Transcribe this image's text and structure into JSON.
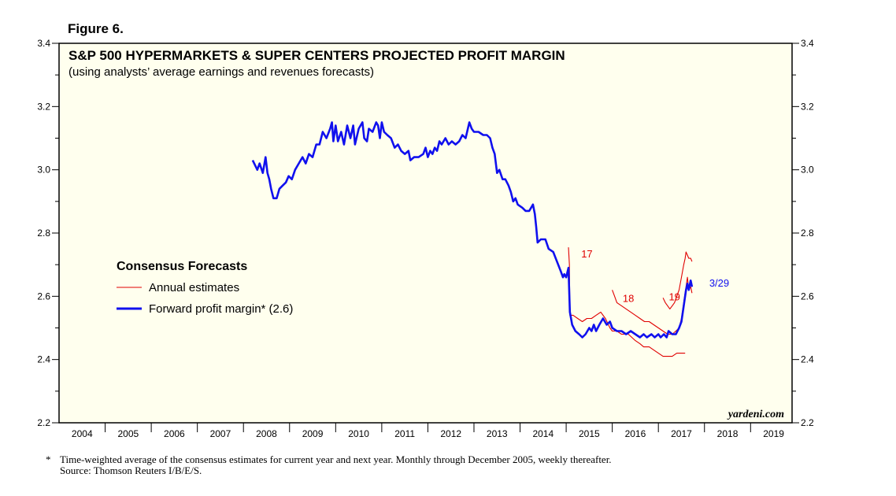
{
  "figure_label": "Figure 6.",
  "colors": {
    "background": "#ffffee",
    "forward": "#1010ee",
    "annual": "#e00000"
  },
  "footnote": {
    "marker": "*",
    "text": "Time-weighted average of the consensus estimates for current year and next year. Monthly through December 2005, weekly thereafter.",
    "source": "Source: Thomson Reuters I/B/E/S."
  },
  "chart_data": {
    "type": "line",
    "title": "S&P 500 HYPERMARKETS & SUPER CENTERS PROJECTED PROFIT MARGIN",
    "subtitle": "(using analysts’ average earnings and revenues forecasts)",
    "xlim": [
      2004.0,
      2019.9
    ],
    "ylim": [
      2.2,
      3.4
    ],
    "y_ticks": [
      "3.4",
      "3.2",
      "3.0",
      "2.8",
      "2.6",
      "2.4",
      "2.2"
    ],
    "x_labels": [
      "2004",
      "2005",
      "2006",
      "2007",
      "2008",
      "2009",
      "2010",
      "2011",
      "2012",
      "2013",
      "2014",
      "2015",
      "2016",
      "2017",
      "2018",
      "2019"
    ],
    "legend": {
      "heading": "Consensus Forecasts",
      "items": [
        "Annual estimates",
        "Forward profit margin* (2.6)"
      ]
    },
    "credit": "yardeni.com",
    "annotations": [
      {
        "text": "17",
        "x": 2015.45,
        "y": 2.735,
        "series": "annual"
      },
      {
        "text": "18",
        "x": 2016.35,
        "y": 2.595,
        "series": "annual"
      },
      {
        "text": "19",
        "x": 2017.35,
        "y": 2.6,
        "series": "annual"
      },
      {
        "text": "3/29",
        "x": 2018.32,
        "y": 2.643,
        "series": "forward"
      }
    ],
    "series": [
      {
        "name": "Forward profit margin* (2.6)",
        "color": "#1010ee",
        "points": [
          [
            2008.2,
            3.03
          ],
          [
            2008.3,
            3.0
          ],
          [
            2008.35,
            3.02
          ],
          [
            2008.42,
            2.99
          ],
          [
            2008.48,
            3.04
          ],
          [
            2008.52,
            2.99
          ],
          [
            2008.56,
            2.97
          ],
          [
            2008.6,
            2.94
          ],
          [
            2008.65,
            2.91
          ],
          [
            2008.72,
            2.91
          ],
          [
            2008.78,
            2.94
          ],
          [
            2008.85,
            2.95
          ],
          [
            2008.92,
            2.96
          ],
          [
            2008.98,
            2.98
          ],
          [
            2009.05,
            2.97
          ],
          [
            2009.12,
            3.0
          ],
          [
            2009.2,
            3.02
          ],
          [
            2009.28,
            3.04
          ],
          [
            2009.35,
            3.02
          ],
          [
            2009.42,
            3.05
          ],
          [
            2009.5,
            3.04
          ],
          [
            2009.58,
            3.08
          ],
          [
            2009.65,
            3.08
          ],
          [
            2009.72,
            3.12
          ],
          [
            2009.8,
            3.1
          ],
          [
            2009.88,
            3.13
          ],
          [
            2009.92,
            3.15
          ],
          [
            2009.95,
            3.09
          ],
          [
            2010.0,
            3.14
          ],
          [
            2010.05,
            3.09
          ],
          [
            2010.12,
            3.12
          ],
          [
            2010.18,
            3.08
          ],
          [
            2010.25,
            3.14
          ],
          [
            2010.32,
            3.1
          ],
          [
            2010.38,
            3.14
          ],
          [
            2010.42,
            3.08
          ],
          [
            2010.5,
            3.13
          ],
          [
            2010.58,
            3.15
          ],
          [
            2010.62,
            3.1
          ],
          [
            2010.68,
            3.09
          ],
          [
            2010.72,
            3.13
          ],
          [
            2010.8,
            3.12
          ],
          [
            2010.88,
            3.15
          ],
          [
            2010.92,
            3.14
          ],
          [
            2010.96,
            3.1
          ],
          [
            2011.0,
            3.15
          ],
          [
            2011.05,
            3.12
          ],
          [
            2011.12,
            3.11
          ],
          [
            2011.2,
            3.1
          ],
          [
            2011.28,
            3.07
          ],
          [
            2011.35,
            3.08
          ],
          [
            2011.42,
            3.06
          ],
          [
            2011.5,
            3.05
          ],
          [
            2011.58,
            3.06
          ],
          [
            2011.62,
            3.03
          ],
          [
            2011.7,
            3.04
          ],
          [
            2011.8,
            3.04
          ],
          [
            2011.9,
            3.05
          ],
          [
            2011.95,
            3.07
          ],
          [
            2012.0,
            3.04
          ],
          [
            2012.05,
            3.06
          ],
          [
            2012.1,
            3.05
          ],
          [
            2012.15,
            3.07
          ],
          [
            2012.2,
            3.06
          ],
          [
            2012.25,
            3.09
          ],
          [
            2012.3,
            3.08
          ],
          [
            2012.38,
            3.1
          ],
          [
            2012.45,
            3.08
          ],
          [
            2012.52,
            3.09
          ],
          [
            2012.6,
            3.08
          ],
          [
            2012.68,
            3.09
          ],
          [
            2012.75,
            3.11
          ],
          [
            2012.82,
            3.1
          ],
          [
            2012.9,
            3.15
          ],
          [
            2012.95,
            3.13
          ],
          [
            2013.0,
            3.12
          ],
          [
            2013.1,
            3.12
          ],
          [
            2013.2,
            3.11
          ],
          [
            2013.28,
            3.11
          ],
          [
            2013.35,
            3.1
          ],
          [
            2013.4,
            3.07
          ],
          [
            2013.45,
            3.05
          ],
          [
            2013.5,
            2.99
          ],
          [
            2013.55,
            3.0
          ],
          [
            2013.62,
            2.97
          ],
          [
            2013.68,
            2.97
          ],
          [
            2013.75,
            2.95
          ],
          [
            2013.8,
            2.93
          ],
          [
            2013.85,
            2.9
          ],
          [
            2013.9,
            2.91
          ],
          [
            2013.95,
            2.89
          ],
          [
            2014.05,
            2.88
          ],
          [
            2014.12,
            2.87
          ],
          [
            2014.2,
            2.87
          ],
          [
            2014.28,
            2.89
          ],
          [
            2014.32,
            2.86
          ],
          [
            2014.35,
            2.82
          ],
          [
            2014.38,
            2.77
          ],
          [
            2014.45,
            2.78
          ],
          [
            2014.55,
            2.78
          ],
          [
            2014.62,
            2.75
          ],
          [
            2014.72,
            2.74
          ],
          [
            2014.8,
            2.71
          ],
          [
            2014.88,
            2.68
          ],
          [
            2014.93,
            2.66
          ],
          [
            2014.96,
            2.67
          ],
          [
            2015.0,
            2.66
          ],
          [
            2015.05,
            2.69
          ],
          [
            2015.08,
            2.55
          ],
          [
            2015.13,
            2.51
          ],
          [
            2015.2,
            2.49
          ],
          [
            2015.28,
            2.48
          ],
          [
            2015.35,
            2.47
          ],
          [
            2015.42,
            2.48
          ],
          [
            2015.5,
            2.5
          ],
          [
            2015.55,
            2.49
          ],
          [
            2015.6,
            2.51
          ],
          [
            2015.65,
            2.49
          ],
          [
            2015.72,
            2.51
          ],
          [
            2015.8,
            2.53
          ],
          [
            2015.88,
            2.51
          ],
          [
            2015.95,
            2.52
          ],
          [
            2016.0,
            2.5
          ],
          [
            2016.1,
            2.49
          ],
          [
            2016.2,
            2.49
          ],
          [
            2016.3,
            2.48
          ],
          [
            2016.4,
            2.49
          ],
          [
            2016.5,
            2.48
          ],
          [
            2016.6,
            2.47
          ],
          [
            2016.68,
            2.48
          ],
          [
            2016.75,
            2.47
          ],
          [
            2016.85,
            2.48
          ],
          [
            2016.92,
            2.47
          ],
          [
            2017.0,
            2.48
          ],
          [
            2017.05,
            2.47
          ],
          [
            2017.12,
            2.48
          ],
          [
            2017.18,
            2.47
          ],
          [
            2017.22,
            2.49
          ],
          [
            2017.3,
            2.48
          ],
          [
            2017.38,
            2.48
          ],
          [
            2017.45,
            2.5
          ],
          [
            2017.5,
            2.52
          ],
          [
            2017.55,
            2.57
          ],
          [
            2017.6,
            2.62
          ],
          [
            2017.63,
            2.64
          ],
          [
            2017.66,
            2.62
          ],
          [
            2017.7,
            2.65
          ],
          [
            2017.73,
            2.63
          ]
        ]
      },
      {
        "name": "Annual estimates 2017",
        "color": "#e00000",
        "points": [
          [
            2015.05,
            2.755
          ],
          [
            2015.07,
            2.7
          ],
          [
            2015.08,
            2.54
          ],
          [
            2015.15,
            2.54
          ],
          [
            2015.25,
            2.53
          ],
          [
            2015.35,
            2.52
          ],
          [
            2015.45,
            2.53
          ],
          [
            2015.55,
            2.53
          ],
          [
            2015.65,
            2.54
          ],
          [
            2015.75,
            2.55
          ],
          [
            2015.85,
            2.53
          ],
          [
            2015.95,
            2.5
          ],
          [
            2016.0,
            2.49
          ],
          [
            2016.1,
            2.49
          ],
          [
            2016.2,
            2.48
          ],
          [
            2016.35,
            2.48
          ],
          [
            2016.5,
            2.46
          ],
          [
            2016.6,
            2.45
          ],
          [
            2016.68,
            2.44
          ],
          [
            2016.8,
            2.44
          ],
          [
            2016.9,
            2.43
          ],
          [
            2017.0,
            2.42
          ],
          [
            2017.1,
            2.41
          ],
          [
            2017.2,
            2.41
          ],
          [
            2017.3,
            2.41
          ],
          [
            2017.4,
            2.42
          ],
          [
            2017.5,
            2.42
          ],
          [
            2017.58,
            2.42
          ]
        ]
      },
      {
        "name": "Annual estimates 2018",
        "color": "#e00000",
        "points": [
          [
            2016.0,
            2.62
          ],
          [
            2016.05,
            2.6
          ],
          [
            2016.1,
            2.58
          ],
          [
            2016.2,
            2.57
          ],
          [
            2016.3,
            2.56
          ],
          [
            2016.4,
            2.55
          ],
          [
            2016.5,
            2.54
          ],
          [
            2016.6,
            2.53
          ],
          [
            2016.7,
            2.52
          ],
          [
            2016.8,
            2.52
          ],
          [
            2016.9,
            2.51
          ],
          [
            2017.0,
            2.5
          ],
          [
            2017.1,
            2.49
          ],
          [
            2017.2,
            2.48
          ],
          [
            2017.3,
            2.48
          ],
          [
            2017.38,
            2.49
          ],
          [
            2017.45,
            2.5
          ],
          [
            2017.5,
            2.53
          ],
          [
            2017.55,
            2.58
          ],
          [
            2017.6,
            2.63
          ],
          [
            2017.63,
            2.66
          ],
          [
            2017.66,
            2.62
          ],
          [
            2017.7,
            2.63
          ],
          [
            2017.73,
            2.61
          ]
        ]
      },
      {
        "name": "Annual estimates 2019",
        "color": "#e00000",
        "points": [
          [
            2017.1,
            2.595
          ],
          [
            2017.15,
            2.58
          ],
          [
            2017.2,
            2.57
          ],
          [
            2017.25,
            2.56
          ],
          [
            2017.3,
            2.57
          ],
          [
            2017.35,
            2.58
          ],
          [
            2017.4,
            2.6
          ],
          [
            2017.45,
            2.62
          ],
          [
            2017.5,
            2.66
          ],
          [
            2017.55,
            2.7
          ],
          [
            2017.58,
            2.72
          ],
          [
            2017.6,
            2.74
          ],
          [
            2017.63,
            2.73
          ],
          [
            2017.66,
            2.72
          ],
          [
            2017.7,
            2.72
          ],
          [
            2017.73,
            2.71
          ]
        ]
      }
    ]
  }
}
